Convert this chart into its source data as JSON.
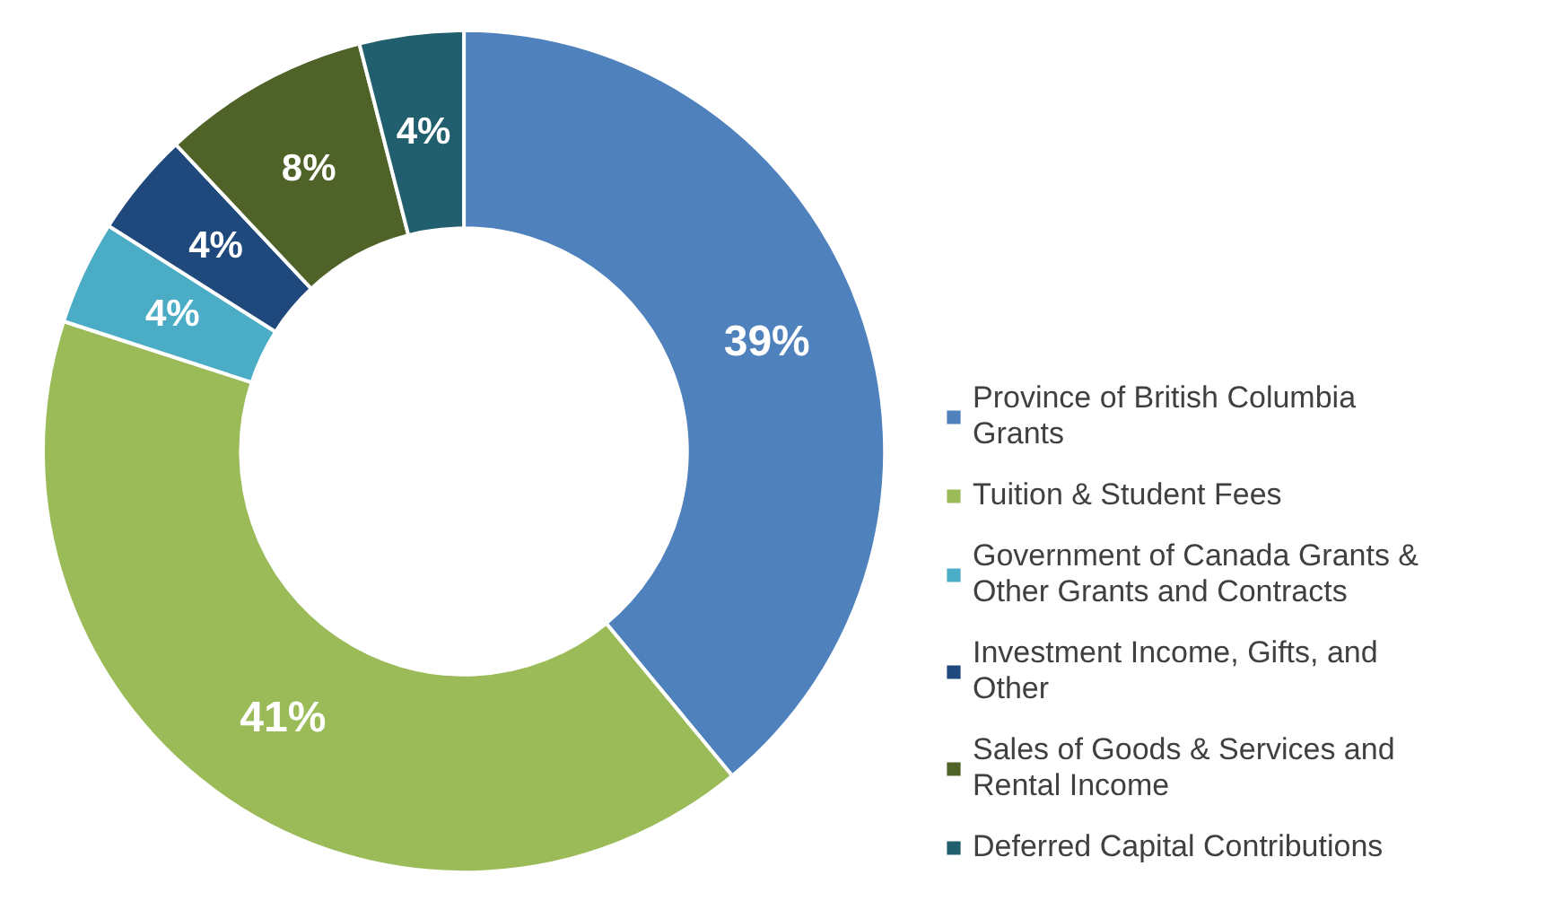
{
  "chart_data": {
    "type": "donut",
    "categories": [
      "Province of British Columbia Grants",
      "Tuition & Student Fees",
      "Government of Canada Grants & Other Grants and Contracts",
      "Investment Income, Gifts, and Other",
      "Sales of Goods & Services and Rental Income",
      "Deferred Capital Contributions"
    ],
    "values": [
      39,
      41,
      4,
      4,
      8,
      4
    ],
    "value_labels": [
      "39%",
      "41%",
      "4%",
      "4%",
      "8%",
      "4%"
    ],
    "colors": [
      "#4f81bd",
      "#9bbb59",
      "#4bacc6",
      "#1f497d",
      "#4f6228",
      "#215f6e"
    ],
    "legend": "right"
  }
}
